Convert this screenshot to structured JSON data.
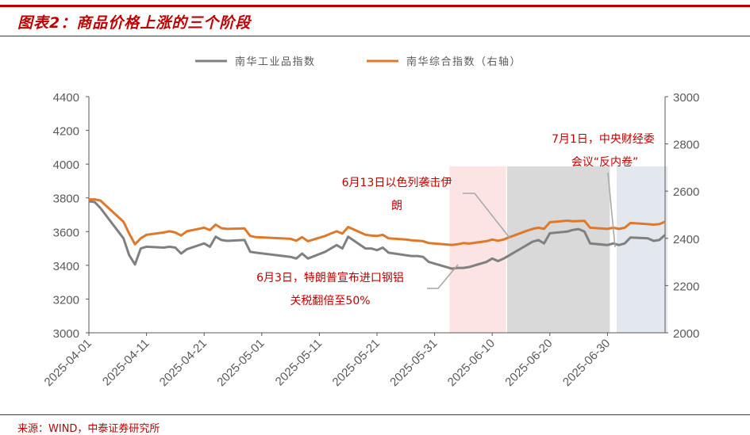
{
  "title": "图表2：商品价格上涨的三个阶段",
  "source": "来源：WIND，中泰证券研究所",
  "colors": {
    "brand_red": "#c00000",
    "gray_series": "#808080",
    "orange_series": "#e0782a",
    "red_shade": "#fce4e4",
    "gray_shade": "#d9d9d9",
    "blue_gray_shade": "#e3e7ee",
    "annotation": "#c00000"
  },
  "chart_data": {
    "type": "line",
    "x_dates": [
      "2025-04-01",
      "2025-04-02",
      "2025-04-03",
      "2025-04-07",
      "2025-04-08",
      "2025-04-09",
      "2025-04-10",
      "2025-04-11",
      "2025-04-14",
      "2025-04-15",
      "2025-04-16",
      "2025-04-17",
      "2025-04-18",
      "2025-04-21",
      "2025-04-22",
      "2025-04-23",
      "2025-04-24",
      "2025-04-25",
      "2025-04-28",
      "2025-04-29",
      "2025-04-30",
      "2025-05-06",
      "2025-05-07",
      "2025-05-08",
      "2025-05-09",
      "2025-05-12",
      "2025-05-13",
      "2025-05-14",
      "2025-05-15",
      "2025-05-16",
      "2025-05-19",
      "2025-05-20",
      "2025-05-21",
      "2025-05-22",
      "2025-05-23",
      "2025-05-26",
      "2025-05-27",
      "2025-05-28",
      "2025-05-29",
      "2025-05-30",
      "2025-06-03",
      "2025-06-04",
      "2025-06-05",
      "2025-06-06",
      "2025-06-09",
      "2025-06-10",
      "2025-06-11",
      "2025-06-12",
      "2025-06-13",
      "2025-06-16",
      "2025-06-17",
      "2025-06-18",
      "2025-06-19",
      "2025-06-20",
      "2025-06-23",
      "2025-06-24",
      "2025-06-25",
      "2025-06-26",
      "2025-06-27",
      "2025-06-30",
      "2025-07-01",
      "2025-07-02",
      "2025-07-03",
      "2025-07-04",
      "2025-07-07",
      "2025-07-08",
      "2025-07-09",
      "2025-07-10"
    ],
    "xticks": [
      "2025-04-01",
      "2025-04-11",
      "2025-04-21",
      "2025-05-01",
      "2025-05-11",
      "2025-05-21",
      "2025-05-31",
      "2025-06-10",
      "2025-06-20",
      "2025-06-30"
    ],
    "x_range": [
      "2025-04-01",
      "2025-07-10"
    ],
    "left_axis": {
      "min": 3000,
      "max": 4400,
      "ticks": [
        3000,
        3200,
        3400,
        3600,
        3800,
        4000,
        4200,
        4400
      ]
    },
    "right_axis": {
      "min": 2000,
      "max": 3000,
      "ticks": [
        2000,
        2200,
        2400,
        2600,
        2800,
        3000
      ]
    },
    "series": [
      {
        "name": "南华工业品指数",
        "axis": "left",
        "color": "#808080",
        "values": [
          3780,
          3775,
          3740,
          3560,
          3460,
          3405,
          3500,
          3510,
          3505,
          3510,
          3505,
          3470,
          3495,
          3530,
          3510,
          3570,
          3550,
          3545,
          3550,
          3480,
          3475,
          3450,
          3440,
          3470,
          3440,
          3480,
          3500,
          3520,
          3500,
          3570,
          3500,
          3500,
          3490,
          3505,
          3475,
          3460,
          3455,
          3455,
          3450,
          3420,
          3380,
          3385,
          3385,
          3390,
          3420,
          3440,
          3425,
          3440,
          3460,
          3520,
          3540,
          3550,
          3530,
          3590,
          3600,
          3610,
          3615,
          3600,
          3530,
          3520,
          3530,
          3520,
          3530,
          3565,
          3560,
          3545,
          3550,
          3580
        ]
      },
      {
        "name": "南华综合指数（右轴）",
        "axis": "right",
        "color": "#e0782a",
        "values": [
          2565,
          2565,
          2560,
          2470,
          2420,
          2375,
          2400,
          2415,
          2425,
          2430,
          2425,
          2412,
          2430,
          2445,
          2435,
          2458,
          2443,
          2440,
          2442,
          2410,
          2405,
          2398,
          2390,
          2405,
          2388,
          2410,
          2420,
          2430,
          2420,
          2448,
          2415,
          2412,
          2410,
          2415,
          2400,
          2395,
          2392,
          2390,
          2388,
          2380,
          2372,
          2375,
          2380,
          2378,
          2388,
          2395,
          2390,
          2395,
          2405,
          2432,
          2440,
          2445,
          2440,
          2468,
          2475,
          2472,
          2473,
          2474,
          2445,
          2440,
          2445,
          2440,
          2445,
          2465,
          2460,
          2458,
          2460,
          2470
        ]
      }
    ],
    "shaded_regions": [
      {
        "start": "2025-06-03",
        "end": "2025-06-12",
        "color": "#fce4e4"
      },
      {
        "start": "2025-06-13",
        "end": "2025-06-30",
        "color": "#d9d9d9"
      },
      {
        "start": "2025-07-02",
        "end": "2025-07-10",
        "color": "#e3e7ee"
      }
    ],
    "annotations": [
      {
        "lines": [
          "6月13日以色列袭击伊",
          "朗"
        ]
      },
      {
        "lines": [
          "6月3日，特朗普宣布进口钢铝",
          "关税翻倍至50%"
        ]
      },
      {
        "lines": [
          "7月1日，中央财经委",
          "会议“反内卷”"
        ]
      }
    ],
    "legend_position": "top-center",
    "grid": false
  }
}
